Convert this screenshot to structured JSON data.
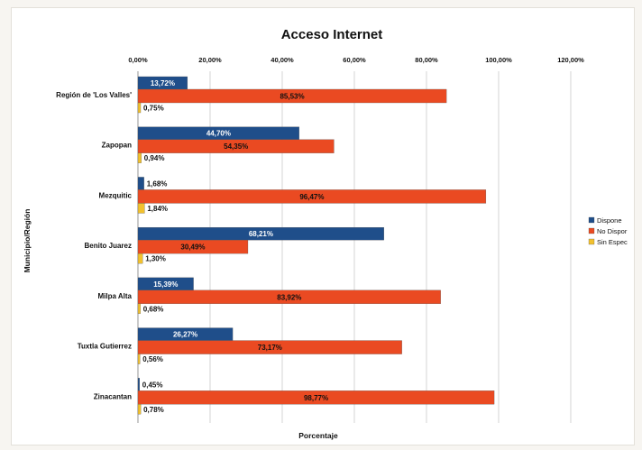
{
  "chart_data": {
    "type": "bar",
    "orientation": "horizontal",
    "title": "Acceso Internet",
    "xlabel": "Porcentaje",
    "ylabel": "Municipio/Región",
    "xlim": [
      0,
      120
    ],
    "x_ticks": [
      "0,00%",
      "20,00%",
      "40,00%",
      "60,00%",
      "80,00%",
      "100,00%",
      "120,00%"
    ],
    "x_axis_position": "top",
    "grid": true,
    "legend_position": "right",
    "categories": [
      "Región de 'Los Valles'",
      "Zapopan",
      "Mezquitic",
      "Benito Juarez",
      "Milpa Alta",
      "Tuxtla Gutierrez",
      "Zinacantan"
    ],
    "series": [
      {
        "name": "Dispone",
        "color": "#1f4e8a",
        "label_color": "#ffffff",
        "values": [
          13.72,
          44.7,
          1.68,
          68.21,
          15.39,
          26.27,
          0.45
        ],
        "labels": [
          "13,72%",
          "44,70%",
          "1,68%",
          "68,21%",
          "15,39%",
          "26,27%",
          "0,45%"
        ]
      },
      {
        "name": "No Dispor",
        "color": "#ea4a22",
        "label_color": "#111111",
        "values": [
          85.53,
          54.35,
          96.47,
          30.49,
          83.92,
          73.17,
          98.77
        ],
        "labels": [
          "85,53%",
          "54,35%",
          "96,47%",
          "30,49%",
          "83,92%",
          "73,17%",
          "98,77%"
        ]
      },
      {
        "name": "Sin Espec",
        "color": "#f2c12e",
        "label_color": "#111111",
        "values": [
          0.75,
          0.94,
          1.84,
          1.3,
          0.68,
          0.56,
          0.78
        ],
        "labels": [
          "0,75%",
          "0,94%",
          "1,84%",
          "1,30%",
          "0,68%",
          "0,56%",
          "0,78%"
        ]
      }
    ]
  }
}
